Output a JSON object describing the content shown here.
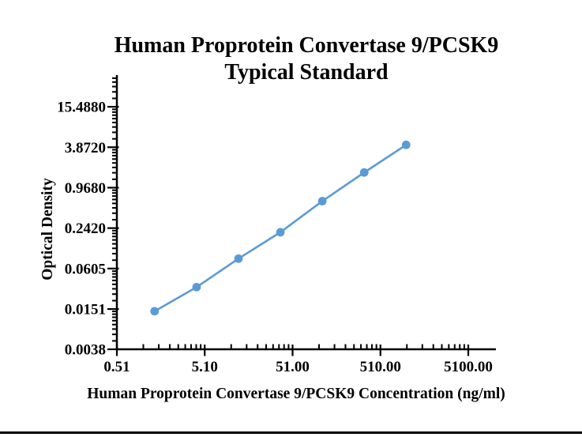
{
  "page": {
    "background": "#ffffff",
    "bottom_rule_color": "#000000"
  },
  "chart_data": {
    "type": "line",
    "title_lines": [
      "Human Proprotein Convertase 9/PCSK9",
      "Typical Standard"
    ],
    "xlabel": "Human Proprotein Convertase 9/PCSK9 Concentration (ng/ml)",
    "ylabel": "Optical Density",
    "x_scale": "log",
    "y_scale": "log",
    "grid": false,
    "legend": "none",
    "x_axis": {
      "min": 0.51,
      "max": 10300
    },
    "y_axis": {
      "min": 0.0038,
      "max": 46
    },
    "x_ticks": {
      "labels": [
        "0.51",
        "5.10",
        "51.00",
        "510.00",
        "5100.00"
      ],
      "values": [
        0.51,
        5.1,
        51,
        510,
        5100
      ]
    },
    "y_ticks": {
      "labels": [
        "0.0038",
        "0.0151",
        "0.0605",
        "0.2420",
        "0.9680",
        "3.8720",
        "15.4880"
      ],
      "values": [
        0.0038,
        0.0151,
        0.0605,
        0.242,
        0.968,
        3.872,
        15.488
      ]
    },
    "series": [
      {
        "name": "Typical Standard",
        "color": "#5B9BD5",
        "marker": "circle",
        "x": [
          1.37,
          4.12,
          12.35,
          37.04,
          111.11,
          333.33,
          1000
        ],
        "y": [
          0.014,
          0.032,
          0.085,
          0.21,
          0.61,
          1.63,
          4.2
        ]
      }
    ]
  }
}
